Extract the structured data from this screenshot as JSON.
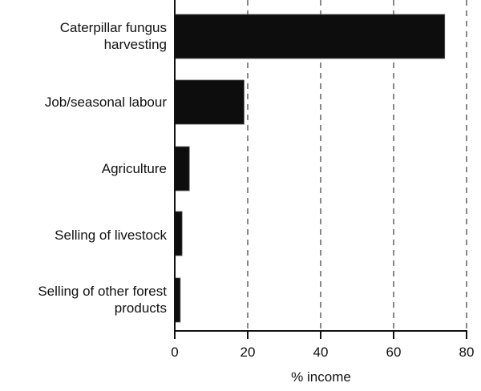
{
  "chart_data": {
    "type": "bar",
    "orientation": "horizontal",
    "title": "",
    "xlabel": "% income",
    "ylabel": "",
    "categories": [
      "Caterpillar fungus\nharvesting",
      "Job/seasonal labour",
      "Agriculture",
      "Selling of livestock",
      "Selling of other forest\nproducts"
    ],
    "values": [
      74,
      19,
      4,
      2,
      1.5
    ],
    "xlim": [
      0,
      80
    ],
    "xticks": [
      0,
      20,
      40,
      60,
      80
    ],
    "grid": "vertical dashed at 20, 40, 60, 80",
    "bar_color": "#0d0d0d",
    "grid_color": "#888888",
    "legend": null
  },
  "labels": {
    "cat0": "Caterpillar fungus\nharvesting",
    "cat1": "Job/seasonal labour",
    "cat2": "Agriculture",
    "cat3": "Selling of livestock",
    "cat4": "Selling of other forest\nproducts",
    "tick0": "0",
    "tick1": "20",
    "tick2": "40",
    "tick3": "60",
    "tick4": "80",
    "xlabel": "% income"
  }
}
